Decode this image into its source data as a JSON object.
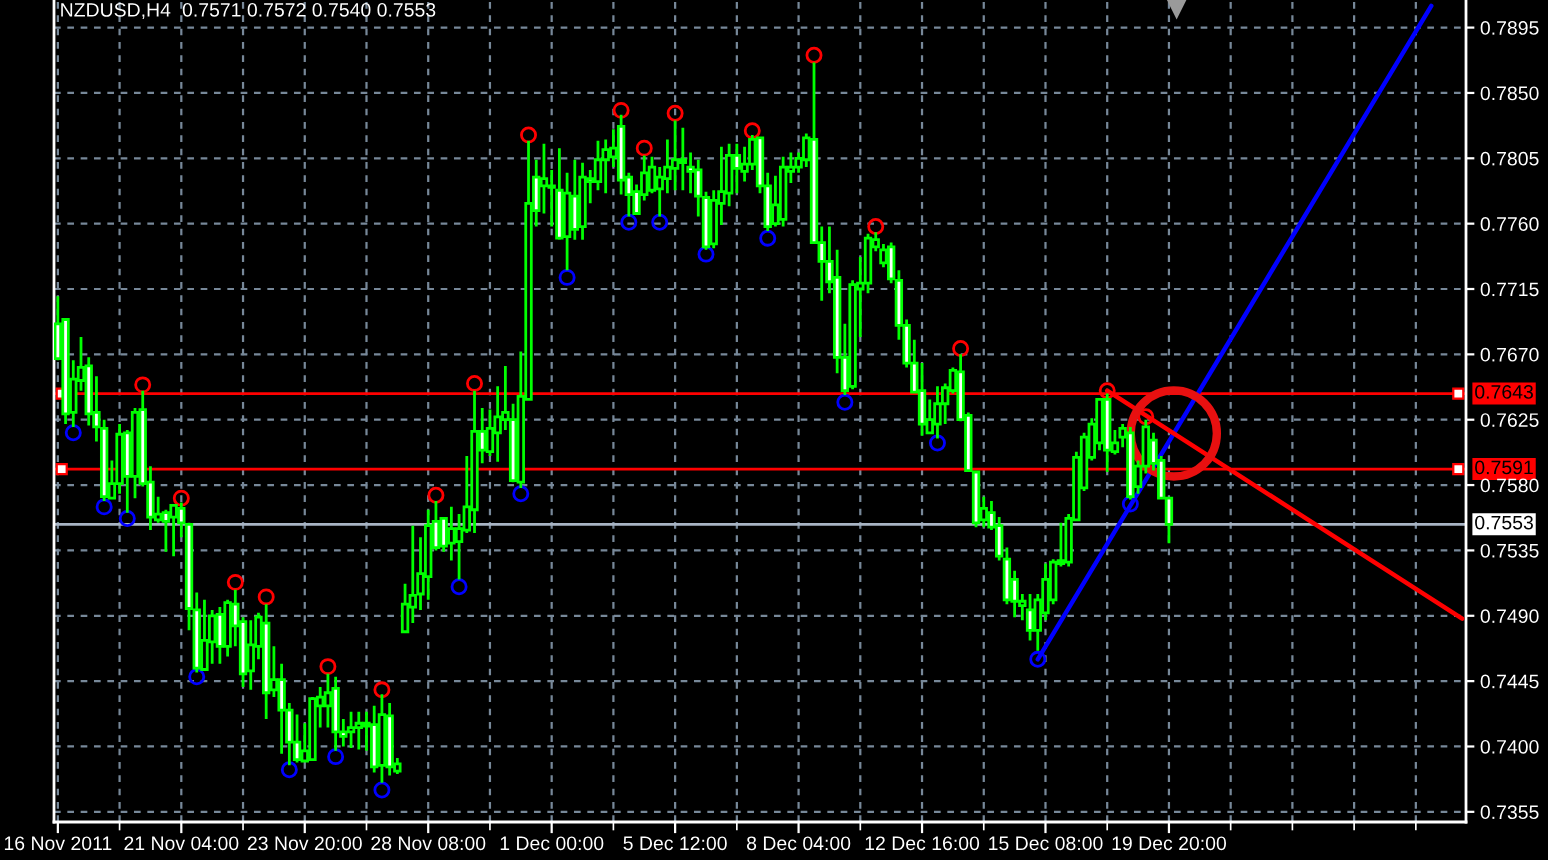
{
  "chart_data": {
    "type": "candlestick",
    "title": "NZDUSD,H4",
    "subtitle": "0.7571 0.7572 0.7540 0.7553",
    "color": "#00ff00",
    "categories": [
      "16 Nov 2011",
      null,
      null,
      null,
      null,
      null,
      null,
      null,
      null,
      null,
      null,
      null,
      null,
      null,
      null,
      null,
      "21 Nov 04:00",
      null,
      null,
      null,
      null,
      null,
      null,
      null,
      null,
      null,
      null,
      null,
      null,
      null,
      null,
      null,
      "23 Nov 20:00",
      null,
      null,
      null,
      null,
      null,
      null,
      null,
      null,
      null,
      null,
      null,
      null,
      null,
      null,
      null,
      "28 Nov 08:00",
      null,
      null,
      null,
      null,
      null,
      null,
      null,
      null,
      null,
      null,
      null,
      null,
      null,
      null,
      null,
      "1 Dec 00:00",
      null,
      null,
      null,
      null,
      null,
      null,
      null,
      null,
      null,
      null,
      null,
      null,
      null,
      null,
      null,
      "5 Dec 12:00",
      null,
      null,
      null,
      null,
      null,
      null,
      null,
      null,
      null,
      null,
      null,
      null,
      null,
      null,
      null,
      "8 Dec 04:00",
      null,
      null,
      null,
      null,
      null,
      null,
      null,
      null,
      null,
      null,
      null,
      null,
      null,
      null,
      null,
      "12 Dec 16:00",
      null,
      null,
      null,
      null,
      null,
      null,
      null,
      null,
      null,
      null,
      null,
      null,
      null,
      null,
      null,
      "15 Dec 08:00",
      null,
      null,
      null,
      null,
      null,
      null,
      null,
      null,
      null,
      null,
      null,
      null,
      null,
      null,
      null,
      "19 Dec 20:00",
      null,
      null,
      null,
      null,
      null,
      null,
      null,
      null,
      null,
      null,
      null,
      null,
      null,
      null,
      null,
      null,
      null,
      null,
      null,
      null,
      null,
      null,
      null,
      null,
      null,
      null,
      null,
      null,
      null,
      null,
      null,
      null,
      null,
      null,
      null,
      null,
      null,
      null
    ],
    "ohlc": [
      [
        0.7691,
        0.771,
        0.7666,
        0.7667
      ],
      [
        0.7694,
        0.7695,
        0.7622,
        0.7629
      ],
      [
        0.763,
        0.7666,
        0.762,
        0.7653
      ],
      [
        0.7652,
        0.7682,
        0.7645,
        0.7661
      ],
      [
        0.7662,
        0.7668,
        0.7621,
        0.7629
      ],
      [
        0.763,
        0.7655,
        0.761,
        0.762
      ],
      [
        0.7619,
        0.7625,
        0.7569,
        0.7572
      ],
      [
        0.7571,
        0.7597,
        0.757,
        0.7581
      ],
      [
        0.7581,
        0.7622,
        0.7574,
        0.7615
      ],
      [
        0.7616,
        0.7618,
        0.7561,
        0.7586
      ],
      [
        0.7586,
        0.7633,
        0.7571,
        0.763
      ],
      [
        0.7632,
        0.7645,
        0.7579,
        0.7581
      ],
      [
        0.7582,
        0.7593,
        0.7549,
        0.7558
      ],
      [
        0.7556,
        0.7572,
        0.7554,
        0.756
      ],
      [
        0.7561,
        0.7563,
        0.7534,
        0.7555
      ],
      [
        0.7558,
        0.7566,
        0.7531,
        0.7566
      ],
      [
        0.7564,
        0.7568,
        0.7544,
        0.7554
      ],
      [
        0.7553,
        0.7554,
        0.748,
        0.7495
      ],
      [
        0.7494,
        0.7506,
        0.7451,
        0.7454
      ],
      [
        0.7453,
        0.7501,
        0.7452,
        0.7473
      ],
      [
        0.7472,
        0.7494,
        0.7457,
        0.749
      ],
      [
        0.7491,
        0.7496,
        0.7457,
        0.7469
      ],
      [
        0.7469,
        0.7501,
        0.7462,
        0.7499
      ],
      [
        0.7498,
        0.7508,
        0.7469,
        0.7483
      ],
      [
        0.7486,
        0.7489,
        0.7441,
        0.745
      ],
      [
        0.7452,
        0.7487,
        0.7439,
        0.747
      ],
      [
        0.7469,
        0.7492,
        0.746,
        0.7489
      ],
      [
        0.7485,
        0.7498,
        0.7419,
        0.7437
      ],
      [
        0.7439,
        0.7469,
        0.7434,
        0.7446
      ],
      [
        0.7446,
        0.7457,
        0.7395,
        0.7425
      ],
      [
        0.7425,
        0.743,
        0.7387,
        0.7403
      ],
      [
        0.7403,
        0.7422,
        0.7389,
        0.7391
      ],
      [
        0.739,
        0.7416,
        0.7389,
        0.7397
      ],
      [
        0.7391,
        0.7434,
        0.739,
        0.7433
      ],
      [
        0.7428,
        0.7441,
        0.7413,
        0.7434
      ],
      [
        0.7428,
        0.745,
        0.7413,
        0.7437
      ],
      [
        0.744,
        0.7448,
        0.7397,
        0.741
      ],
      [
        0.741,
        0.7419,
        0.74,
        0.7407
      ],
      [
        0.741,
        0.7424,
        0.7399,
        0.7413
      ],
      [
        0.7413,
        0.7424,
        0.7398,
        0.7416
      ],
      [
        0.7416,
        0.7424,
        0.7397,
        0.7414
      ],
      [
        0.7415,
        0.7428,
        0.7382,
        0.7386
      ],
      [
        0.7387,
        0.7436,
        0.7375,
        0.7422
      ],
      [
        0.7421,
        0.743,
        0.738,
        0.7386
      ],
      [
        0.7383,
        0.7392,
        0.7381,
        0.7388
      ],
      [
        0.7479,
        0.7512,
        0.7478,
        0.7498
      ],
      [
        0.7496,
        0.7552,
        0.7485,
        0.7504
      ],
      [
        0.7505,
        0.7544,
        0.7494,
        0.7519
      ],
      [
        0.7517,
        0.7563,
        0.7501,
        0.7552
      ],
      [
        0.7555,
        0.7569,
        0.7535,
        0.7537
      ],
      [
        0.7557,
        0.7557,
        0.7534,
        0.7538
      ],
      [
        0.754,
        0.7565,
        0.7528,
        0.755
      ],
      [
        0.7541,
        0.756,
        0.7515,
        0.755
      ],
      [
        0.7549,
        0.76,
        0.7547,
        0.7565
      ],
      [
        0.7563,
        0.7645,
        0.7547,
        0.7617
      ],
      [
        0.7617,
        0.7633,
        0.7595,
        0.7604
      ],
      [
        0.7603,
        0.7632,
        0.76,
        0.7619
      ],
      [
        0.7616,
        0.7648,
        0.7596,
        0.7627
      ],
      [
        0.7625,
        0.7662,
        0.7618,
        0.763
      ],
      [
        0.7625,
        0.7636,
        0.7582,
        0.7583
      ],
      [
        0.7582,
        0.7672,
        0.7578,
        0.7641
      ],
      [
        0.7639,
        0.7817,
        0.7638,
        0.7774
      ],
      [
        0.7792,
        0.7804,
        0.7758,
        0.7769
      ],
      [
        0.7786,
        0.7815,
        0.7767,
        0.7791
      ],
      [
        0.7786,
        0.7797,
        0.7758,
        0.7785
      ],
      [
        0.7783,
        0.7812,
        0.7749,
        0.775
      ],
      [
        0.7751,
        0.7795,
        0.7728,
        0.7781
      ],
      [
        0.7779,
        0.7804,
        0.7749,
        0.7756
      ],
      [
        0.7758,
        0.7802,
        0.7749,
        0.7792
      ],
      [
        0.7791,
        0.7797,
        0.7774,
        0.7789
      ],
      [
        0.7789,
        0.7817,
        0.7783,
        0.7804
      ],
      [
        0.7804,
        0.7818,
        0.7781,
        0.7811
      ],
      [
        0.7806,
        0.7825,
        0.7799,
        0.7812
      ],
      [
        0.7827,
        0.7835,
        0.778,
        0.779
      ],
      [
        0.7792,
        0.7795,
        0.7765,
        0.778
      ],
      [
        0.7782,
        0.7787,
        0.7767,
        0.7767
      ],
      [
        0.778,
        0.7807,
        0.7776,
        0.7795
      ],
      [
        0.7783,
        0.7806,
        0.7781,
        0.7799
      ],
      [
        0.7784,
        0.7799,
        0.7765,
        0.7792
      ],
      [
        0.7791,
        0.7818,
        0.7781,
        0.7799
      ],
      [
        0.7798,
        0.7831,
        0.7783,
        0.7804
      ],
      [
        0.7802,
        0.7826,
        0.7783,
        0.7804
      ],
      [
        0.7799,
        0.7809,
        0.7781,
        0.7796
      ],
      [
        0.7797,
        0.7804,
        0.7765,
        0.7779
      ],
      [
        0.7778,
        0.7782,
        0.7742,
        0.7744
      ],
      [
        0.7746,
        0.7783,
        0.7743,
        0.7776
      ],
      [
        0.7774,
        0.7813,
        0.7759,
        0.7782
      ],
      [
        0.7781,
        0.7815,
        0.7772,
        0.7807
      ],
      [
        0.7807,
        0.7815,
        0.7781,
        0.7798
      ],
      [
        0.7796,
        0.7813,
        0.7789,
        0.7801
      ],
      [
        0.7801,
        0.7821,
        0.7797,
        0.7818
      ],
      [
        0.7819,
        0.782,
        0.7781,
        0.7786
      ],
      [
        0.7786,
        0.7795,
        0.7755,
        0.7758
      ],
      [
        0.776,
        0.7793,
        0.7758,
        0.7773
      ],
      [
        0.7763,
        0.7806,
        0.7758,
        0.7799
      ],
      [
        0.7796,
        0.7809,
        0.7788,
        0.7799
      ],
      [
        0.7799,
        0.7809,
        0.7795,
        0.7805
      ],
      [
        0.7804,
        0.7822,
        0.7799,
        0.7819
      ],
      [
        0.7818,
        0.7871,
        0.7746,
        0.7747
      ],
      [
        0.7747,
        0.7758,
        0.7707,
        0.7734
      ],
      [
        0.7734,
        0.7758,
        0.7712,
        0.772
      ],
      [
        0.7723,
        0.7742,
        0.7657,
        0.7668
      ],
      [
        0.7668,
        0.7691,
        0.7642,
        0.7645
      ],
      [
        0.7648,
        0.7721,
        0.7646,
        0.7718
      ],
      [
        0.7715,
        0.7737,
        0.7682,
        0.7719
      ],
      [
        0.7719,
        0.7753,
        0.7712,
        0.775
      ],
      [
        0.7744,
        0.7754,
        0.7741,
        0.7749
      ],
      [
        0.7733,
        0.7746,
        0.773,
        0.7742
      ],
      [
        0.7744,
        0.7747,
        0.7719,
        0.7722
      ],
      [
        0.7721,
        0.7728,
        0.768,
        0.769
      ],
      [
        0.769,
        0.7694,
        0.7661,
        0.7664
      ],
      [
        0.7664,
        0.768,
        0.7643,
        0.7644
      ],
      [
        0.7645,
        0.7664,
        0.7614,
        0.7622
      ],
      [
        0.7616,
        0.7639,
        0.7615,
        0.7625
      ],
      [
        0.7622,
        0.7648,
        0.7612,
        0.7636
      ],
      [
        0.7636,
        0.765,
        0.7622,
        0.7647
      ],
      [
        0.7645,
        0.7661,
        0.7643,
        0.7659
      ],
      [
        0.7658,
        0.767,
        0.7624,
        0.7625
      ],
      [
        0.7628,
        0.763,
        0.7589,
        0.759
      ],
      [
        0.7589,
        0.759,
        0.7551,
        0.7554
      ],
      [
        0.7556,
        0.7572,
        0.7551,
        0.7564
      ],
      [
        0.7561,
        0.7569,
        0.7549,
        0.7551
      ],
      [
        0.7552,
        0.7558,
        0.7528,
        0.7531
      ],
      [
        0.7529,
        0.7537,
        0.7498,
        0.7501
      ],
      [
        0.7515,
        0.7521,
        0.7489,
        0.75
      ],
      [
        0.7497,
        0.7505,
        0.7487,
        0.75
      ],
      [
        0.7494,
        0.7505,
        0.7473,
        0.748
      ],
      [
        0.748,
        0.7505,
        0.7466,
        0.7501
      ],
      [
        0.7492,
        0.7526,
        0.7487,
        0.7515
      ],
      [
        0.7501,
        0.7529,
        0.7498,
        0.7527
      ],
      [
        0.7526,
        0.7554,
        0.7524,
        0.7528
      ],
      [
        0.7527,
        0.756,
        0.7524,
        0.7557
      ],
      [
        0.7556,
        0.7603,
        0.7555,
        0.7599
      ],
      [
        0.7578,
        0.7616,
        0.7576,
        0.7613
      ],
      [
        0.7599,
        0.7626,
        0.7597,
        0.7622
      ],
      [
        0.7609,
        0.764,
        0.7604,
        0.7639
      ],
      [
        0.7639,
        0.7643,
        0.7589,
        0.7604
      ],
      [
        0.7603,
        0.7618,
        0.7601,
        0.7609
      ],
      [
        0.7613,
        0.7622,
        0.7606,
        0.7619
      ],
      [
        0.7616,
        0.762,
        0.757,
        0.7572
      ],
      [
        0.7579,
        0.7597,
        0.7574,
        0.7593
      ],
      [
        0.7593,
        0.7625,
        0.7588,
        0.762
      ],
      [
        0.7611,
        0.7616,
        0.759,
        0.7595
      ],
      [
        0.7597,
        0.76,
        0.757,
        0.7571
      ],
      [
        0.7571,
        0.7572,
        0.754,
        0.7553
      ],
      null,
      null,
      null,
      null,
      null,
      null,
      null,
      null,
      null,
      null,
      null,
      null,
      null,
      null,
      null,
      null,
      null,
      null,
      null,
      null,
      null,
      null,
      null,
      null,
      null,
      null,
      null,
      null,
      null,
      null,
      null,
      null,
      null,
      null,
      null,
      null,
      null,
      null
    ],
    "series": [
      {
        "type": "scatter",
        "color": "#ff0000",
        "marker": "circle",
        "values": [
          null,
          null,
          null,
          null,
          null,
          null,
          null,
          null,
          null,
          null,
          null,
          0.7649,
          null,
          null,
          null,
          null,
          0.7571,
          null,
          null,
          null,
          null,
          null,
          null,
          0.7513,
          null,
          null,
          null,
          0.7503,
          null,
          null,
          null,
          null,
          null,
          null,
          null,
          0.7455,
          null,
          null,
          null,
          null,
          null,
          null,
          0.7439,
          null,
          null,
          null,
          null,
          null,
          null,
          0.7573,
          null,
          null,
          null,
          null,
          0.765,
          null,
          null,
          null,
          null,
          null,
          null,
          0.7821,
          null,
          null,
          null,
          null,
          null,
          null,
          null,
          null,
          null,
          null,
          null,
          0.7838,
          null,
          null,
          0.7812,
          null,
          null,
          null,
          0.7836,
          null,
          null,
          null,
          null,
          null,
          null,
          null,
          null,
          null,
          0.7824,
          null,
          null,
          null,
          null,
          null,
          null,
          null,
          0.7876,
          null,
          null,
          null,
          null,
          null,
          null,
          null,
          0.7758,
          null,
          null,
          null,
          null,
          null,
          null,
          null,
          null,
          null,
          null,
          0.7674,
          null,
          null,
          null,
          null,
          null,
          null,
          null,
          null,
          null,
          null,
          null,
          null,
          null,
          null,
          null,
          null,
          null,
          null,
          0.7645,
          null,
          null,
          null,
          null,
          0.7627,
          null,
          null,
          null,
          null,
          null,
          null,
          null,
          null,
          null,
          null,
          null,
          null,
          null,
          null,
          null,
          null,
          null,
          null,
          null,
          null,
          null,
          null,
          null,
          null,
          null,
          null,
          null,
          null,
          null,
          null,
          null,
          null,
          null,
          null,
          null,
          null,
          null,
          null,
          null,
          null,
          null
        ]
      },
      {
        "type": "scatter",
        "color": "#0000ff",
        "marker": "circle",
        "values": [
          null,
          null,
          0.7616,
          null,
          null,
          null,
          0.7565,
          null,
          null,
          0.7557,
          null,
          null,
          null,
          null,
          null,
          null,
          null,
          null,
          0.7448,
          null,
          null,
          null,
          null,
          null,
          null,
          null,
          null,
          null,
          null,
          null,
          0.7384,
          null,
          null,
          null,
          null,
          null,
          0.7393,
          null,
          null,
          null,
          null,
          null,
          0.737,
          null,
          null,
          null,
          null,
          null,
          null,
          null,
          null,
          null,
          0.751,
          null,
          null,
          null,
          null,
          null,
          null,
          null,
          0.7574,
          null,
          null,
          null,
          null,
          null,
          0.7723,
          null,
          null,
          null,
          null,
          null,
          null,
          null,
          0.7761,
          null,
          null,
          null,
          0.7761,
          null,
          null,
          null,
          null,
          null,
          0.7739,
          null,
          null,
          null,
          null,
          null,
          null,
          null,
          0.775,
          null,
          null,
          null,
          null,
          null,
          null,
          null,
          null,
          null,
          0.7637,
          null,
          null,
          null,
          null,
          null,
          null,
          null,
          null,
          null,
          null,
          null,
          0.7609,
          null,
          null,
          null,
          null,
          null,
          null,
          null,
          null,
          null,
          null,
          null,
          null,
          0.746,
          null,
          null,
          null,
          null,
          null,
          null,
          null,
          null,
          null,
          null,
          null,
          0.7567,
          null,
          null,
          null,
          null,
          null,
          null,
          null,
          null,
          null,
          null,
          null,
          null,
          null,
          null,
          null,
          null,
          null,
          null,
          null,
          null,
          null,
          null,
          null,
          null,
          null,
          null,
          null,
          null,
          null,
          null,
          null,
          null,
          null,
          null,
          null,
          null,
          null,
          null,
          null,
          null,
          null,
          null,
          null
        ]
      },
      {
        "type": "line",
        "color": "#0000ff",
        "values": [
          null,
          null,
          null,
          null,
          null,
          null,
          null,
          null,
          null,
          null,
          null,
          null,
          null,
          null,
          null,
          null,
          null,
          null,
          null,
          null,
          null,
          null,
          null,
          null,
          null,
          null,
          null,
          null,
          null,
          null,
          null,
          null,
          null,
          null,
          null,
          null,
          null,
          null,
          null,
          null,
          null,
          null,
          null,
          null,
          null,
          null,
          null,
          null,
          null,
          null,
          null,
          null,
          null,
          null,
          null,
          null,
          null,
          null,
          null,
          null,
          null,
          null,
          null,
          null,
          null,
          null,
          null,
          null,
          null,
          null,
          null,
          null,
          null,
          null,
          null,
          null,
          null,
          null,
          null,
          null,
          null,
          null,
          null,
          null,
          null,
          null,
          null,
          null,
          null,
          null,
          null,
          null,
          null,
          null,
          null,
          null,
          null,
          null,
          null,
          null,
          null,
          null,
          null,
          null,
          null,
          null,
          null,
          null,
          null,
          null,
          null,
          null,
          null,
          null,
          null,
          null,
          null,
          null,
          null,
          null,
          null,
          null,
          null,
          null,
          null,
          null,
          null,
          0.746,
          null,
          null,
          null,
          null,
          null,
          null,
          null,
          null,
          null,
          null,
          null,
          null,
          null,
          null,
          null,
          null,
          null,
          null,
          null,
          null,
          null,
          null,
          null,
          null,
          null,
          null,
          null,
          null,
          null,
          null,
          null,
          null,
          null,
          null,
          null,
          null,
          null,
          null,
          null,
          null,
          null,
          null,
          null,
          null,
          null,
          null,
          null,
          null,
          null,
          null,
          0.791,
          null,
          null,
          null,
          null
        ]
      },
      {
        "type": "line",
        "color": "#ff0000",
        "values": [
          null,
          null,
          null,
          null,
          null,
          null,
          null,
          null,
          null,
          null,
          null,
          null,
          null,
          null,
          null,
          null,
          null,
          null,
          null,
          null,
          null,
          null,
          null,
          null,
          null,
          null,
          null,
          null,
          null,
          null,
          null,
          null,
          null,
          null,
          null,
          null,
          null,
          null,
          null,
          null,
          null,
          null,
          null,
          null,
          null,
          null,
          null,
          null,
          null,
          null,
          null,
          null,
          null,
          null,
          null,
          null,
          null,
          null,
          null,
          null,
          null,
          null,
          null,
          null,
          null,
          null,
          null,
          null,
          null,
          null,
          null,
          null,
          null,
          null,
          null,
          null,
          null,
          null,
          null,
          null,
          null,
          null,
          null,
          null,
          null,
          null,
          null,
          null,
          null,
          null,
          null,
          null,
          null,
          null,
          null,
          null,
          null,
          null,
          null,
          null,
          null,
          null,
          null,
          null,
          null,
          null,
          null,
          null,
          null,
          null,
          null,
          null,
          null,
          null,
          null,
          null,
          null,
          null,
          null,
          null,
          null,
          null,
          null,
          null,
          null,
          null,
          null,
          null,
          null,
          null,
          null,
          null,
          null,
          null,
          null,
          null,
          0.7645,
          null,
          null,
          null,
          null,
          null,
          null,
          null,
          null,
          null,
          null,
          null,
          null,
          null,
          null,
          null,
          null,
          null,
          null,
          null,
          null,
          null,
          null,
          null,
          null,
          null,
          null,
          null,
          null,
          null,
          null,
          null,
          null,
          null,
          null,
          null,
          null,
          null,
          null,
          null,
          null,
          null,
          null,
          null,
          null,
          null,
          0.7488
        ]
      }
    ],
    "ylim": [
      0.7348,
      0.7914
    ],
    "yticks": [
      0.7355,
      {
        "value": 0.74,
        "label": "0.7400"
      },
      0.7445,
      {
        "value": 0.749,
        "label": "0.7490"
      },
      0.7535,
      {
        "value": 0.758,
        "label": "0.7580"
      },
      0.7625,
      {
        "value": 0.767,
        "label": "0.7670"
      },
      0.7715,
      {
        "value": 0.776,
        "label": "0.7760"
      },
      0.7805,
      {
        "value": 0.785,
        "label": "0.7850"
      },
      0.7895
    ],
    "grid": true,
    "ref_lines": [
      {
        "axis": "y",
        "value": 0.7643,
        "label": "0.7643",
        "color": "#ff0000"
      },
      {
        "axis": "y",
        "value": 0.7591,
        "label": "0.7591",
        "color": "#ff0000"
      },
      {
        "axis": "y",
        "value": 0.7553,
        "label": "0.7553"
      }
    ]
  }
}
